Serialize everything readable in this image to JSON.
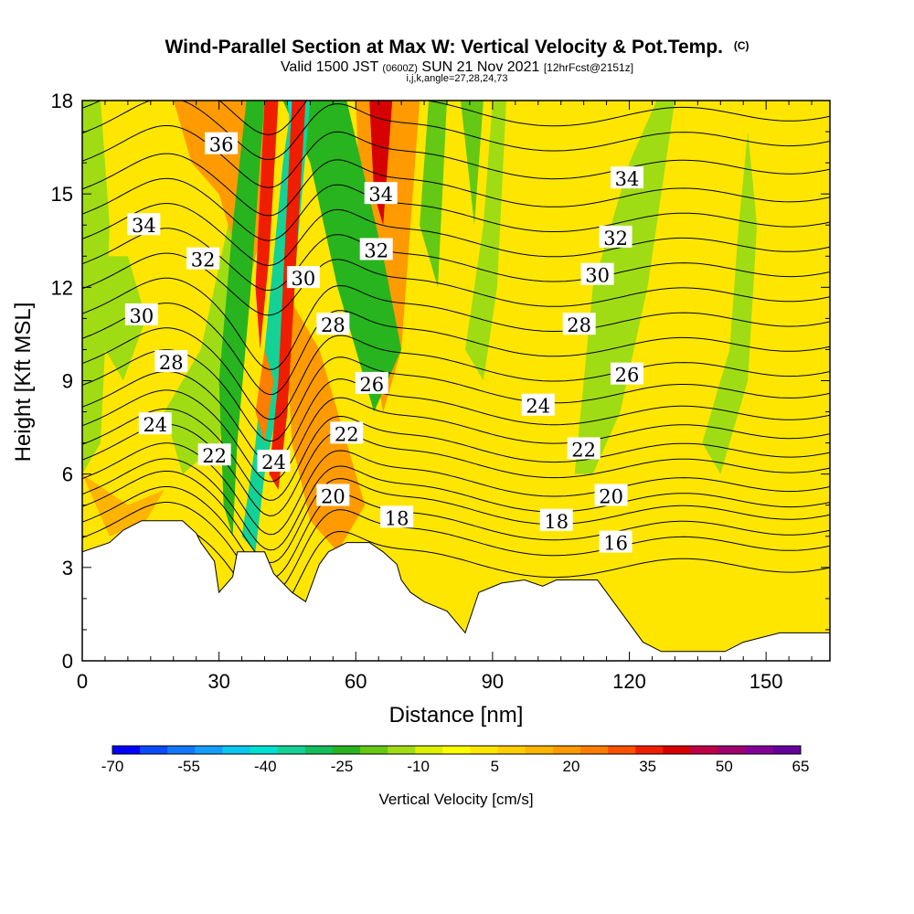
{
  "chart_data": {
    "type": "heatmap",
    "title": "Wind-Parallel Section at Max W: Vertical Velocity & Pot.Temp.",
    "copyright": "(C)",
    "subtitle_valid": "Valid 1500 JST",
    "subtitle_utc": "(0600Z)",
    "subtitle_date": "SUN 21 Nov 2021",
    "subtitle_fcst": "[12hrFcst@2151z]",
    "subtitle_indices": "i,j,k,angle=27,28,24,73",
    "xlabel": "Distance [nm]",
    "ylabel": "Height [Kft MSL]",
    "xlim": [
      0,
      164
    ],
    "ylim": [
      0,
      18
    ],
    "xticks": [
      0,
      30,
      60,
      90,
      120,
      150
    ],
    "yticks": [
      0,
      3,
      6,
      9,
      12,
      15,
      18
    ],
    "colorbar": {
      "label": "Vertical Velocity [cm/s]",
      "ticks": [
        "-70",
        "-55",
        "-40",
        "-25",
        "-10",
        "5",
        "20",
        "35",
        "50",
        "65"
      ],
      "range": [
        -70,
        65
      ],
      "colors": [
        "#0000ff",
        "#0a4bff",
        "#1478ff",
        "#149fff",
        "#0ac8f0",
        "#00e1d2",
        "#14d296",
        "#14be5a",
        "#28b41e",
        "#64c814",
        "#a0dc14",
        "#dcf000",
        "#ffff00",
        "#ffe600",
        "#ffcd00",
        "#ffb400",
        "#ff9b00",
        "#ff7d00",
        "#ff5000",
        "#f01e00",
        "#d70000",
        "#be0046",
        "#a0006e",
        "#820096",
        "#64009b"
      ]
    },
    "theta_contour_labels": [
      {
        "value": "36",
        "x": 30.5,
        "y": 16.6
      },
      {
        "value": "34",
        "x": 13.5,
        "y": 14.0
      },
      {
        "value": "34",
        "x": 65.5,
        "y": 15.0
      },
      {
        "value": "34",
        "x": 119.5,
        "y": 15.5
      },
      {
        "value": "32",
        "x": 26.5,
        "y": 12.9
      },
      {
        "value": "32",
        "x": 64.5,
        "y": 13.2
      },
      {
        "value": "32",
        "x": 117.0,
        "y": 13.6
      },
      {
        "value": "30",
        "x": 48.5,
        "y": 12.3
      },
      {
        "value": "30",
        "x": 13.0,
        "y": 11.1
      },
      {
        "value": "30",
        "x": 113.0,
        "y": 12.4
      },
      {
        "value": "28",
        "x": 55.0,
        "y": 10.8
      },
      {
        "value": "28",
        "x": 19.5,
        "y": 9.6
      },
      {
        "value": "28",
        "x": 109.0,
        "y": 10.8
      },
      {
        "value": "26",
        "x": 63.5,
        "y": 8.9
      },
      {
        "value": "26",
        "x": 119.5,
        "y": 9.2
      },
      {
        "value": "24",
        "x": 16.0,
        "y": 7.6
      },
      {
        "value": "24",
        "x": 100.0,
        "y": 8.2
      },
      {
        "value": "24",
        "x": 42.0,
        "y": 6.4
      },
      {
        "value": "22",
        "x": 58.0,
        "y": 7.3
      },
      {
        "value": "22",
        "x": 29.0,
        "y": 6.6
      },
      {
        "value": "22",
        "x": 110.0,
        "y": 6.8
      },
      {
        "value": "20",
        "x": 55.0,
        "y": 5.3
      },
      {
        "value": "20",
        "x": 116.0,
        "y": 5.3
      },
      {
        "value": "18",
        "x": 69.0,
        "y": 4.6
      },
      {
        "value": "18",
        "x": 104.0,
        "y": 4.5
      },
      {
        "value": "16",
        "x": 117.0,
        "y": 3.8
      }
    ],
    "terrain_profile": [
      {
        "x": 0,
        "h": 3.5
      },
      {
        "x": 6,
        "h": 3.8
      },
      {
        "x": 9,
        "h": 4.2
      },
      {
        "x": 13,
        "h": 4.5
      },
      {
        "x": 22,
        "h": 4.5
      },
      {
        "x": 25,
        "h": 4.1
      },
      {
        "x": 26,
        "h": 3.8
      },
      {
        "x": 29,
        "h": 3.2
      },
      {
        "x": 30,
        "h": 2.2
      },
      {
        "x": 33,
        "h": 2.7
      },
      {
        "x": 34,
        "h": 3.5
      },
      {
        "x": 40,
        "h": 3.5
      },
      {
        "x": 42,
        "h": 2.8
      },
      {
        "x": 46,
        "h": 2.2
      },
      {
        "x": 49,
        "h": 1.9
      },
      {
        "x": 52,
        "h": 3.1
      },
      {
        "x": 54,
        "h": 3.5
      },
      {
        "x": 58,
        "h": 3.8
      },
      {
        "x": 63,
        "h": 3.8
      },
      {
        "x": 66,
        "h": 3.5
      },
      {
        "x": 69,
        "h": 3.1
      },
      {
        "x": 70,
        "h": 2.6
      },
      {
        "x": 72,
        "h": 2.2
      },
      {
        "x": 75,
        "h": 1.9
      },
      {
        "x": 80,
        "h": 1.6
      },
      {
        "x": 84,
        "h": 0.9
      },
      {
        "x": 87,
        "h": 2.2
      },
      {
        "x": 92,
        "h": 2.5
      },
      {
        "x": 97,
        "h": 2.6
      },
      {
        "x": 101,
        "h": 2.4
      },
      {
        "x": 104,
        "h": 2.6
      },
      {
        "x": 113,
        "h": 2.6
      },
      {
        "x": 115,
        "h": 2.2
      },
      {
        "x": 117,
        "h": 1.8
      },
      {
        "x": 120,
        "h": 1.2
      },
      {
        "x": 123,
        "h": 0.6
      },
      {
        "x": 127,
        "h": 0.3
      },
      {
        "x": 141,
        "h": 0.3
      },
      {
        "x": 145,
        "h": 0.6
      },
      {
        "x": 153,
        "h": 0.9
      },
      {
        "x": 158,
        "h": 0.9
      },
      {
        "x": 164,
        "h": 0.9
      }
    ]
  }
}
